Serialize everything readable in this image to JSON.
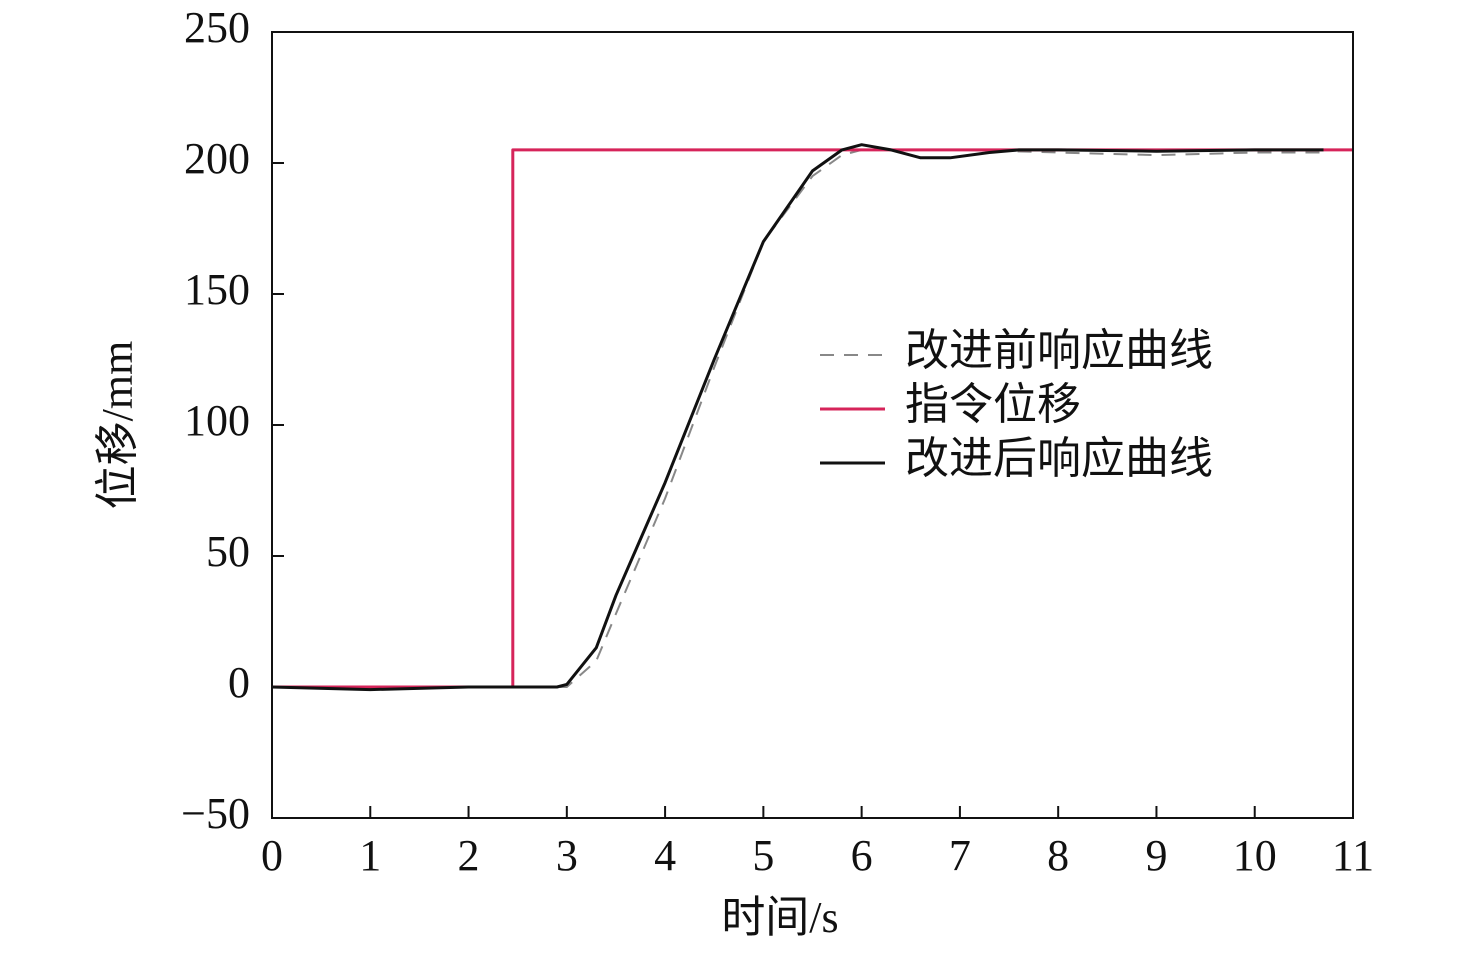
{
  "chart_data": {
    "type": "line",
    "xlabel": "时间/s",
    "ylabel": "位移/mm",
    "xlim": [
      0,
      11
    ],
    "ylim": [
      -50,
      250
    ],
    "xticks": [
      0,
      1,
      2,
      3,
      4,
      5,
      6,
      7,
      8,
      9,
      10,
      11
    ],
    "yticks": [
      {
        "value": -50,
        "label": "−50"
      },
      0,
      50,
      100,
      150,
      200,
      250
    ],
    "series": [
      {
        "name": "改进前响应曲线",
        "color": "#888888",
        "dash": true,
        "x": [
          0,
          1,
          2,
          2.9,
          3,
          3.3,
          3.5,
          4,
          4.5,
          5,
          5.5,
          5.8,
          6,
          6.5,
          7,
          8,
          9,
          10,
          10.7
        ],
        "values": [
          0,
          -1,
          0,
          0,
          0,
          10,
          28,
          72,
          122,
          170,
          195,
          203,
          205,
          205,
          205,
          204,
          203,
          204,
          204
        ]
      },
      {
        "name": "指令位移",
        "color": "#d6245a",
        "dash": false,
        "x": [
          0,
          2.45,
          2.45,
          11
        ],
        "values": [
          0,
          0,
          205,
          205
        ]
      },
      {
        "name": "改进后响应曲线",
        "color": "#111111",
        "dash": false,
        "x": [
          0,
          1,
          2,
          2.9,
          3,
          3.3,
          3.5,
          4,
          4.5,
          5,
          5.5,
          5.8,
          6,
          6.3,
          6.6,
          6.9,
          7.3,
          7.6,
          8,
          9,
          10,
          10.7
        ],
        "values": [
          0,
          -1,
          0,
          0,
          1,
          15,
          35,
          78,
          125,
          170,
          197,
          205,
          207,
          205,
          202,
          202,
          204,
          205,
          205,
          204.5,
          205,
          205
        ]
      }
    ]
  }
}
